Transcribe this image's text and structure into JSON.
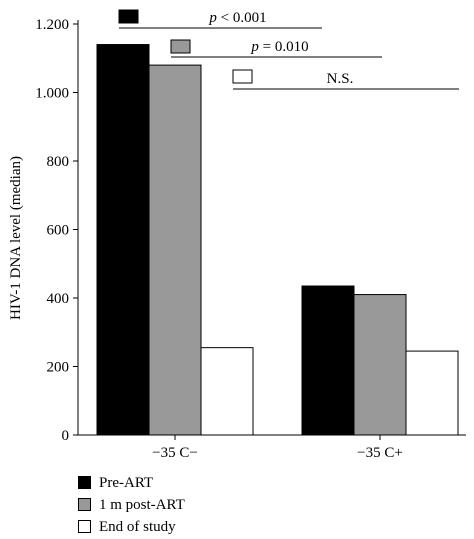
{
  "chart_data": {
    "type": "bar",
    "categories": [
      "−35 C−",
      "−35 C+"
    ],
    "series": [
      {
        "name": "Pre-ART",
        "color": "#000000",
        "values": [
          1140,
          435
        ]
      },
      {
        "name": "1 m post-ART",
        "color": "#999999",
        "values": [
          1080,
          410
        ]
      },
      {
        "name": "End of study",
        "color": "#ffffff",
        "values": [
          255,
          245
        ]
      }
    ],
    "ylabel": "HIV-1 DNA level (median)",
    "xlabel": "",
    "ylim": [
      0,
      1200
    ],
    "yticks": [
      0,
      200,
      400,
      600,
      800,
      1000,
      1200
    ],
    "ytick_labels": [
      "0",
      "200",
      "400",
      "600",
      "800",
      "1.000",
      "1.200"
    ],
    "grid": false,
    "legend_position": "bottom-left",
    "annotations": [
      {
        "series": "Pre-ART",
        "text_italic": "p",
        "text": " < 0.001"
      },
      {
        "series": "1 m post-ART",
        "text_italic": "p",
        "text": " = 0.010"
      },
      {
        "series": "End of study",
        "text_italic": "",
        "text": "N.S."
      }
    ]
  }
}
